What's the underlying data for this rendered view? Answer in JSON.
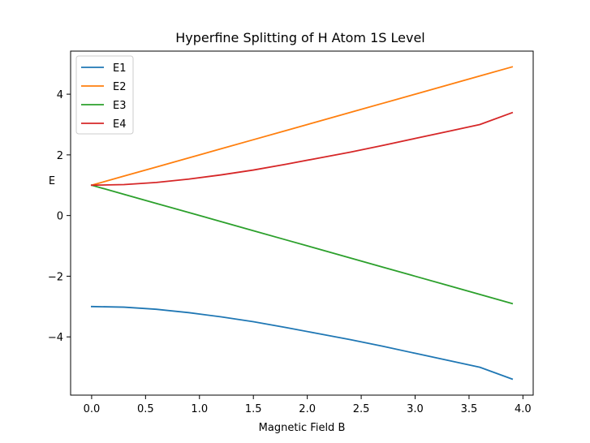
{
  "chart_data": {
    "type": "line",
    "title": "Hyperfine Splitting of H Atom 1S Level",
    "xlabel": "Magnetic Field B",
    "ylabel": "E",
    "xlim": [
      -0.195,
      4.095
    ],
    "ylim": [
      -5.92,
      5.42
    ],
    "xticks": [
      0.0,
      0.5,
      1.0,
      1.5,
      2.0,
      2.5,
      3.0,
      3.5,
      4.0
    ],
    "xtick_labels": [
      "0.0",
      "0.5",
      "1.0",
      "1.5",
      "2.0",
      "2.5",
      "3.0",
      "3.5",
      "4.0"
    ],
    "yticks": [
      -4,
      -2,
      0,
      2,
      4
    ],
    "ytick_labels": [
      "−4",
      "−2",
      "0",
      "2",
      "4"
    ],
    "grid": false,
    "legend_position": "top-left",
    "x": [
      0.0,
      0.3,
      0.6,
      0.9,
      1.2,
      1.5,
      1.8,
      2.1,
      2.4,
      2.7,
      3.0,
      3.3,
      3.6,
      3.9
    ],
    "series": [
      {
        "name": "E1",
        "color": "#1f77b4",
        "values": [
          -3.0,
          -3.02,
          -3.09,
          -3.2,
          -3.34,
          -3.5,
          -3.69,
          -3.89,
          -4.09,
          -4.31,
          -4.54,
          -4.77,
          -5.0,
          -5.39
        ]
      },
      {
        "name": "E2",
        "color": "#ff7f0e",
        "values": [
          1.0,
          1.3,
          1.6,
          1.9,
          2.2,
          2.5,
          2.8,
          3.1,
          3.4,
          3.7,
          4.0,
          4.3,
          4.6,
          4.9
        ]
      },
      {
        "name": "E3",
        "color": "#2ca02c",
        "values": [
          1.0,
          0.7,
          0.4,
          0.1,
          -0.2,
          -0.5,
          -0.8,
          -1.1,
          -1.4,
          -1.7,
          -2.0,
          -2.3,
          -2.6,
          -2.9
        ]
      },
      {
        "name": "E4",
        "color": "#d62728",
        "values": [
          1.0,
          1.02,
          1.09,
          1.2,
          1.34,
          1.5,
          1.69,
          1.89,
          2.09,
          2.31,
          2.54,
          2.77,
          3.0,
          3.39
        ]
      }
    ]
  }
}
